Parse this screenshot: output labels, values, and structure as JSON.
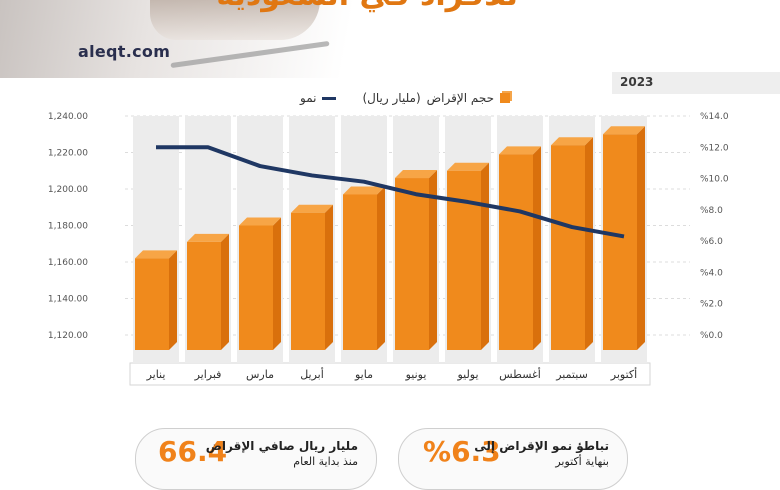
{
  "header": {
    "headline": "للأفراد في السعودية",
    "site": "aleqt.com",
    "year": "2023"
  },
  "legend": {
    "bars": "حجم الإقراض",
    "bars_unit": "(مليار ريال)",
    "line": "نمو"
  },
  "colors": {
    "bar": "#f08a1c",
    "bar_top": "#f7a546",
    "bar_side": "#d9700c",
    "line": "#1f3763",
    "column_bg": "#ececec"
  },
  "chart_data": {
    "type": "bar",
    "categories": [
      "يناير",
      "فبراير",
      "مارس",
      "أبريل",
      "مايو",
      "يونيو",
      "يوليو",
      "أغسطس",
      "سبتمبر",
      "أكتوبر"
    ],
    "series": [
      {
        "name": "حجم الإقراض",
        "axis": "left",
        "values": [
          1162,
          1171,
          1180,
          1187,
          1197,
          1206,
          1210,
          1219,
          1224,
          1230
        ]
      },
      {
        "name": "نمو",
        "axis": "right",
        "type": "line",
        "values": [
          12.0,
          12.0,
          10.8,
          10.2,
          9.8,
          9.0,
          8.5,
          7.9,
          6.9,
          6.3
        ]
      }
    ],
    "ylim": [
      1120,
      1240
    ],
    "yticks": [
      "1,120.00",
      "1,140.00",
      "1,160.00",
      "1,180.00",
      "1,200.00",
      "1,220.00",
      "1,240.00"
    ],
    "y2lim": [
      0,
      14
    ],
    "y2ticks": [
      "%0.0",
      "%2.0",
      "%4.0",
      "%6.0",
      "%8.0",
      "%10.0",
      "%12.0",
      "%14.0"
    ],
    "grid": true,
    "legend_position": "top"
  },
  "stats": [
    {
      "value": "6.3",
      "prefix": "%",
      "line1": "تباطؤ نمو الإقراض إلى",
      "line2": "بنهاية أكتوبر"
    },
    {
      "value": "66.4",
      "prefix": "",
      "line1": "مليار ريال صافي الإقراض",
      "line2": "منذ بداية العام"
    }
  ]
}
